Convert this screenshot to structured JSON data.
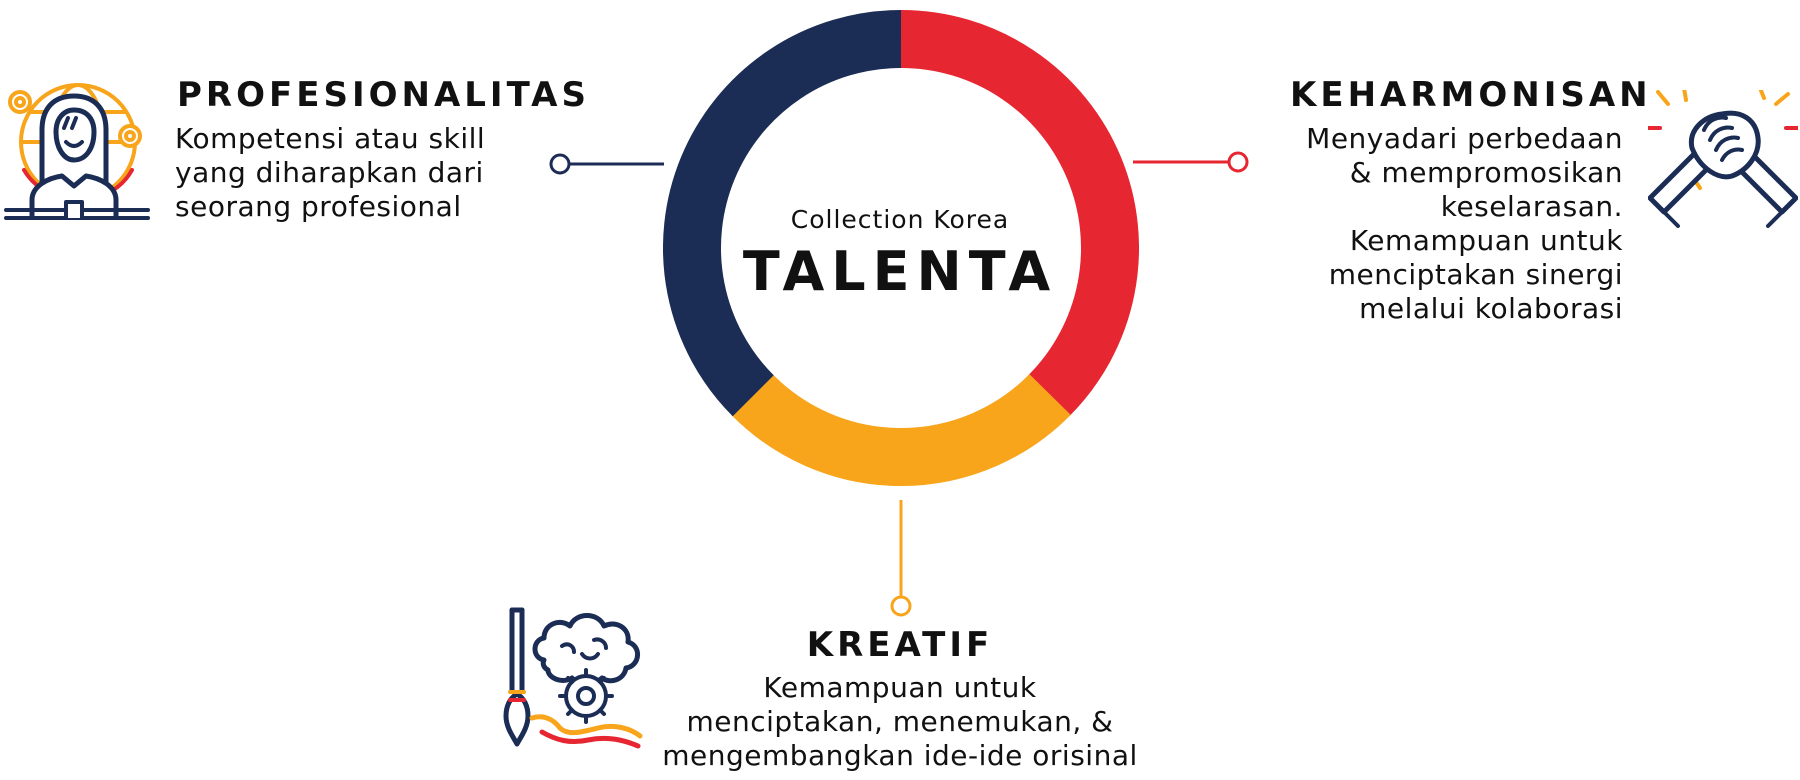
{
  "center": {
    "subtitle": "Collection Korea",
    "title": "TALENTA"
  },
  "colors": {
    "navy": "#1B2D55",
    "red": "#E62631",
    "yellow": "#F8A51C"
  },
  "segments": [
    {
      "name": "profesionalitas",
      "color": "#1B2D55"
    },
    {
      "name": "keharmonisan",
      "color": "#E62631"
    },
    {
      "name": "kreatif",
      "color": "#F8A51C"
    }
  ],
  "profesionalitas": {
    "title": "PROFESIONALITAS",
    "lines": [
      "Kompetensi atau skill",
      "yang diharapkan dari",
      "seorang profesional"
    ],
    "icon": "professional-person-icon"
  },
  "keharmonisan": {
    "title": "KEHARMONISAN",
    "lines": [
      "Menyadari perbedaan",
      "& mempromosikan",
      "keselarasan.",
      "Kemampuan untuk",
      "menciptakan sinergi",
      "melalui kolaborasi"
    ],
    "icon": "handshake-icon"
  },
  "kreatif": {
    "title": "KREATIF",
    "lines": [
      "Kemampuan untuk",
      "menciptakan, menemukan, &",
      "mengembangkan ide-ide orisinal"
    ],
    "icon": "creative-brain-brush-icon"
  }
}
